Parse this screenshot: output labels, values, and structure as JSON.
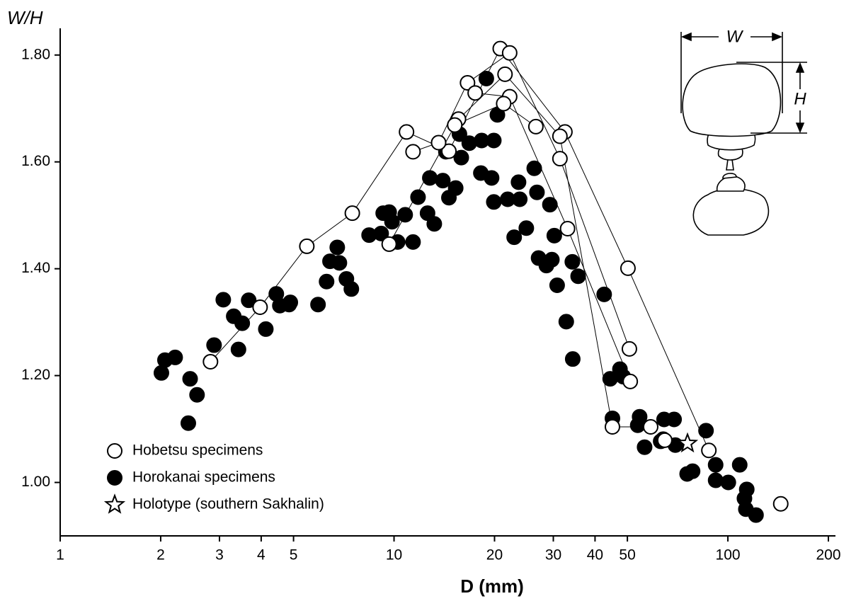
{
  "chart_data": {
    "type": "scatter",
    "y_label": "W/H",
    "x_label": "D (mm)",
    "xscale": "log",
    "xlim": [
      1,
      200
    ],
    "ylim": [
      0.9,
      1.85
    ],
    "xticks": [
      1,
      2,
      3,
      4,
      5,
      10,
      20,
      30,
      40,
      50,
      100,
      200
    ],
    "yticks": [
      {
        "value": 1.0,
        "label": "1.00"
      },
      {
        "value": 1.2,
        "label": "1.20"
      },
      {
        "value": 1.4,
        "label": "1.40"
      },
      {
        "value": 1.6,
        "label": "1.60"
      },
      {
        "value": 1.8,
        "label": "1.80"
      }
    ],
    "legend": "lower left",
    "series": [
      {
        "name": "Hobetsu specimens",
        "color": "#000000",
        "marker": "open-circle",
        "tracks": [
          {
            "x": [
              2.82,
              3.97,
              5.48,
              7.5,
              10.9,
              14.6,
              20.8,
              32.5,
              50.2,
              87.7
            ],
            "values": [
              1.226,
              1.328,
              1.442,
              1.504,
              1.656,
              1.62,
              1.812,
              1.656,
              1.401,
              1.06
            ]
          },
          {
            "x": [
              9.67,
              15.6,
              21.5,
              31.4,
              45.1,
              58.7
            ],
            "values": [
              1.446,
              1.68,
              1.764,
              1.648,
              1.104,
              1.104
            ]
          },
          {
            "x": [
              11.4,
              13.6,
              16.6,
              22.2,
              31.4,
              50.7
            ],
            "values": [
              1.619,
              1.636,
              1.748,
              1.804,
              1.606,
              1.25
            ]
          },
          {
            "x": [
              17.5,
              22.2,
              33.1,
              51.0
            ],
            "values": [
              1.729,
              1.722,
              1.475,
              1.189
            ]
          },
          {
            "x": [
              15.2,
              21.3,
              26.6
            ],
            "values": [
              1.669,
              1.709,
              1.666
            ]
          },
          {
            "x": [
              64.7
            ],
            "values": [
              1.079
            ]
          },
          {
            "x": [
              144
            ],
            "values": [
              0.96
            ]
          }
        ]
      },
      {
        "name": "Horokanai specimens",
        "color": "#000000",
        "marker": "filled-circle",
        "x": [
          2.01,
          2.06,
          2.21,
          2.45,
          2.57,
          2.42,
          2.89,
          3.08,
          3.31,
          3.42,
          3.51,
          3.67,
          4.13,
          4.44,
          4.55,
          4.85,
          4.89,
          5.92,
          6.28,
          6.43,
          6.76,
          6.86,
          7.2,
          7.45,
          8.42,
          9.15,
          9.28,
          9.67,
          9.86,
          10.25,
          10.8,
          11.4,
          11.8,
          12.6,
          12.8,
          13.2,
          14.0,
          14.3,
          14.6,
          15.3,
          15.7,
          15.9,
          16.8,
          18.2,
          18.3,
          18.9,
          19.6,
          19.9,
          19.9,
          20.4,
          21.9,
          22.9,
          23.6,
          23.8,
          24.9,
          26.3,
          26.8,
          27.1,
          28.6,
          29.3,
          29.7,
          30.2,
          30.8,
          32.8,
          34.2,
          34.3,
          35.6,
          42.6,
          44.4,
          45.1,
          47.5,
          48.6,
          54.4,
          53.7,
          56.3,
          62.9,
          64.0,
          64.4,
          69.0,
          69.6,
          75.5,
          78.4,
          86.0,
          91.9,
          91.9,
          100.3,
          108.5,
          112.1,
          113.9,
          113.2,
          121.4
        ],
        "values": [
          1.205,
          1.229,
          1.234,
          1.194,
          1.164,
          1.111,
          1.257,
          1.342,
          1.311,
          1.249,
          1.298,
          1.341,
          1.287,
          1.353,
          1.331,
          1.333,
          1.337,
          1.333,
          1.376,
          1.414,
          1.44,
          1.411,
          1.381,
          1.362,
          1.463,
          1.466,
          1.504,
          1.506,
          1.488,
          1.45,
          1.501,
          1.45,
          1.534,
          1.504,
          1.57,
          1.484,
          1.565,
          1.619,
          1.533,
          1.551,
          1.652,
          1.608,
          1.635,
          1.579,
          1.64,
          1.756,
          1.57,
          1.64,
          1.525,
          1.688,
          1.53,
          1.459,
          1.562,
          1.53,
          1.476,
          1.588,
          1.543,
          1.42,
          1.406,
          1.52,
          1.417,
          1.462,
          1.369,
          1.301,
          1.413,
          1.231,
          1.386,
          1.352,
          1.194,
          1.12,
          1.212,
          1.198,
          1.123,
          1.107,
          1.066,
          1.077,
          1.081,
          1.118,
          1.118,
          1.07,
          1.016,
          1.021,
          1.097,
          1.033,
          1.004,
          1.0,
          1.033,
          0.97,
          0.987,
          0.95,
          0.939
        ]
      },
      {
        "name": "Holotype (southern Sakhalin)",
        "color": "#000000",
        "marker": "star",
        "x": [
          75.7
        ],
        "values": [
          1.073
        ]
      }
    ],
    "inset": {
      "w_label": "W",
      "h_label": "H"
    }
  }
}
